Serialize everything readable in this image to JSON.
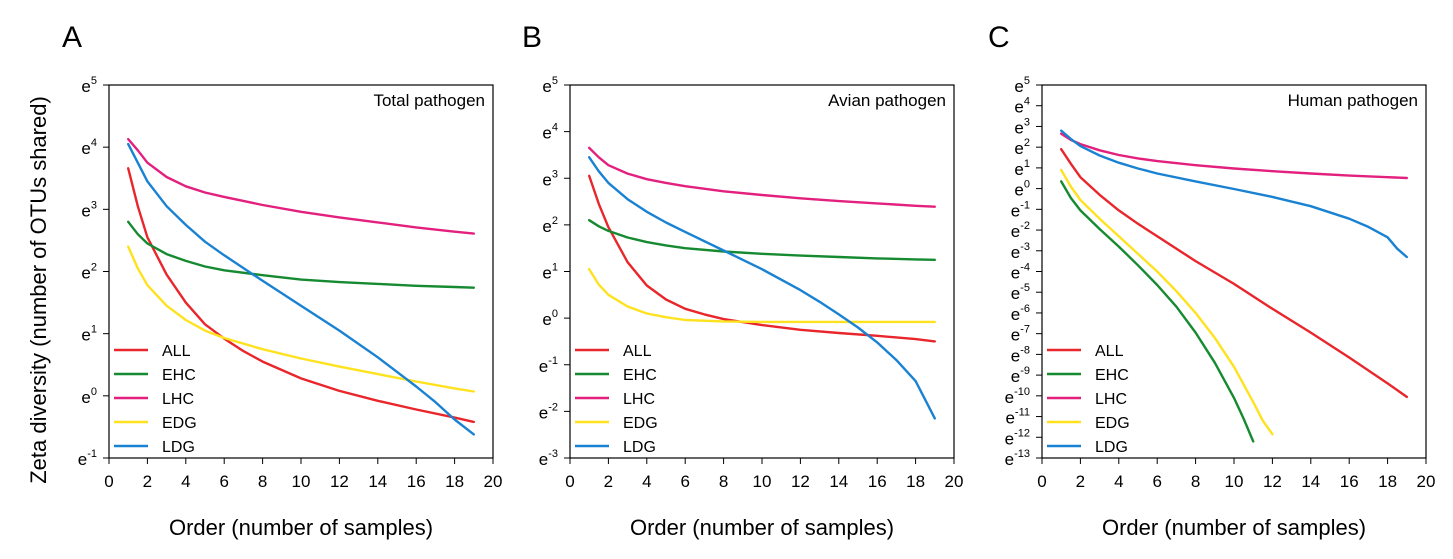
{
  "figure": {
    "ylabel": "Zeta diversity (number of OTUs shared)"
  },
  "chart_data": [
    {
      "type": "line",
      "panel_label": "A",
      "title": "Total pathogen",
      "xlabel": "Order (number of samples)",
      "ylabel": "Zeta diversity (number of OTUs shared)",
      "xlim": [
        0,
        20
      ],
      "ylim": [
        -1,
        5
      ],
      "x_ticks": [
        0,
        2,
        4,
        6,
        8,
        10,
        12,
        14,
        16,
        18,
        20
      ],
      "y_ticks": [
        -1,
        0,
        1,
        2,
        3,
        4,
        5
      ],
      "y_tick_prefix": "e",
      "legend_position": "bottom-left",
      "series": [
        {
          "name": "ALL",
          "color": "#e8262b",
          "points": [
            [
              1,
              3.66
            ],
            [
              1.5,
              3.05
            ],
            [
              2,
              2.55
            ],
            [
              3,
              1.95
            ],
            [
              4,
              1.5
            ],
            [
              5,
              1.15
            ],
            [
              6,
              0.92
            ],
            [
              7,
              0.72
            ],
            [
              8,
              0.55
            ],
            [
              10,
              0.28
            ],
            [
              12,
              0.08
            ],
            [
              14,
              -0.08
            ],
            [
              16,
              -0.22
            ],
            [
              18,
              -0.35
            ],
            [
              19,
              -0.42
            ]
          ]
        },
        {
          "name": "EHC",
          "color": "#168a30",
          "points": [
            [
              1,
              2.8
            ],
            [
              1.5,
              2.6
            ],
            [
              2,
              2.45
            ],
            [
              3,
              2.28
            ],
            [
              4,
              2.17
            ],
            [
              5,
              2.08
            ],
            [
              6,
              2.02
            ],
            [
              8,
              1.94
            ],
            [
              10,
              1.87
            ],
            [
              12,
              1.83
            ],
            [
              14,
              1.8
            ],
            [
              16,
              1.77
            ],
            [
              18,
              1.75
            ],
            [
              19,
              1.74
            ]
          ]
        },
        {
          "name": "LHC",
          "color": "#e3207e",
          "points": [
            [
              1,
              4.13
            ],
            [
              1.5,
              3.95
            ],
            [
              2,
              3.75
            ],
            [
              3,
              3.52
            ],
            [
              4,
              3.37
            ],
            [
              5,
              3.27
            ],
            [
              6,
              3.2
            ],
            [
              8,
              3.07
            ],
            [
              10,
              2.96
            ],
            [
              12,
              2.87
            ],
            [
              14,
              2.79
            ],
            [
              16,
              2.71
            ],
            [
              18,
              2.64
            ],
            [
              19,
              2.61
            ]
          ]
        },
        {
          "name": "EDG",
          "color": "#ffe21f",
          "points": [
            [
              1,
              2.4
            ],
            [
              1.5,
              2.05
            ],
            [
              2,
              1.78
            ],
            [
              3,
              1.45
            ],
            [
              4,
              1.22
            ],
            [
              5,
              1.05
            ],
            [
              6,
              0.93
            ],
            [
              8,
              0.75
            ],
            [
              10,
              0.6
            ],
            [
              12,
              0.47
            ],
            [
              14,
              0.35
            ],
            [
              16,
              0.23
            ],
            [
              18,
              0.12
            ],
            [
              19,
              0.07
            ]
          ]
        },
        {
          "name": "LDG",
          "color": "#1a82d2",
          "points": [
            [
              1,
              4.05
            ],
            [
              1.5,
              3.75
            ],
            [
              2,
              3.45
            ],
            [
              3,
              3.05
            ],
            [
              4,
              2.75
            ],
            [
              5,
              2.48
            ],
            [
              6,
              2.26
            ],
            [
              8,
              1.85
            ],
            [
              10,
              1.45
            ],
            [
              12,
              1.05
            ],
            [
              14,
              0.62
            ],
            [
              16,
              0.15
            ],
            [
              17,
              -0.1
            ],
            [
              18,
              -0.38
            ],
            [
              19,
              -0.62
            ]
          ]
        }
      ]
    },
    {
      "type": "line",
      "panel_label": "B",
      "title": "Avian pathogen",
      "xlabel": "Order (number of samples)",
      "ylabel": "",
      "xlim": [
        0,
        20
      ],
      "ylim": [
        -3,
        5
      ],
      "x_ticks": [
        0,
        2,
        4,
        6,
        8,
        10,
        12,
        14,
        16,
        18,
        20
      ],
      "y_ticks": [
        -3,
        -2,
        -1,
        0,
        1,
        2,
        3,
        4,
        5
      ],
      "y_tick_prefix": "e",
      "legend_position": "bottom-left",
      "series": [
        {
          "name": "ALL",
          "color": "#e8262b",
          "points": [
            [
              1,
              3.05
            ],
            [
              1.5,
              2.45
            ],
            [
              2,
              1.95
            ],
            [
              3,
              1.2
            ],
            [
              4,
              0.7
            ],
            [
              5,
              0.4
            ],
            [
              6,
              0.2
            ],
            [
              7,
              0.08
            ],
            [
              8,
              -0.02
            ],
            [
              10,
              -0.15
            ],
            [
              12,
              -0.25
            ],
            [
              14,
              -0.32
            ],
            [
              16,
              -0.38
            ],
            [
              18,
              -0.45
            ],
            [
              19,
              -0.5
            ]
          ]
        },
        {
          "name": "EHC",
          "color": "#168a30",
          "points": [
            [
              1,
              2.1
            ],
            [
              1.5,
              1.97
            ],
            [
              2,
              1.87
            ],
            [
              3,
              1.73
            ],
            [
              4,
              1.63
            ],
            [
              5,
              1.56
            ],
            [
              6,
              1.5
            ],
            [
              8,
              1.43
            ],
            [
              10,
              1.38
            ],
            [
              12,
              1.34
            ],
            [
              14,
              1.31
            ],
            [
              16,
              1.28
            ],
            [
              18,
              1.26
            ],
            [
              19,
              1.25
            ]
          ]
        },
        {
          "name": "LHC",
          "color": "#e3207e",
          "points": [
            [
              1,
              3.65
            ],
            [
              1.5,
              3.45
            ],
            [
              2,
              3.28
            ],
            [
              3,
              3.1
            ],
            [
              4,
              2.98
            ],
            [
              5,
              2.9
            ],
            [
              6,
              2.83
            ],
            [
              8,
              2.72
            ],
            [
              10,
              2.64
            ],
            [
              12,
              2.57
            ],
            [
              14,
              2.51
            ],
            [
              16,
              2.46
            ],
            [
              18,
              2.41
            ],
            [
              19,
              2.39
            ]
          ]
        },
        {
          "name": "EDG",
          "color": "#ffe21f",
          "points": [
            [
              1,
              1.05
            ],
            [
              1.5,
              0.72
            ],
            [
              2,
              0.5
            ],
            [
              3,
              0.25
            ],
            [
              4,
              0.1
            ],
            [
              5,
              0.02
            ],
            [
              6,
              -0.04
            ],
            [
              8,
              -0.07
            ],
            [
              10,
              -0.08
            ],
            [
              12,
              -0.08
            ],
            [
              14,
              -0.08
            ],
            [
              16,
              -0.08
            ],
            [
              18,
              -0.08
            ],
            [
              19,
              -0.08
            ]
          ]
        },
        {
          "name": "LDG",
          "color": "#1a82d2",
          "points": [
            [
              1,
              3.45
            ],
            [
              1.5,
              3.15
            ],
            [
              2,
              2.9
            ],
            [
              3,
              2.55
            ],
            [
              4,
              2.28
            ],
            [
              5,
              2.05
            ],
            [
              6,
              1.85
            ],
            [
              8,
              1.45
            ],
            [
              10,
              1.05
            ],
            [
              12,
              0.6
            ],
            [
              13,
              0.35
            ],
            [
              14,
              0.08
            ],
            [
              15,
              -0.2
            ],
            [
              16,
              -0.52
            ],
            [
              17,
              -0.9
            ],
            [
              18,
              -1.35
            ],
            [
              18.5,
              -1.75
            ],
            [
              19,
              -2.15
            ]
          ]
        }
      ]
    },
    {
      "type": "line",
      "panel_label": "C",
      "title": "Human pathogen",
      "xlabel": "Order (number of samples)",
      "ylabel": "",
      "xlim": [
        0,
        20
      ],
      "ylim": [
        -13,
        5
      ],
      "x_ticks": [
        0,
        2,
        4,
        6,
        8,
        10,
        12,
        14,
        16,
        18,
        20
      ],
      "y_ticks": [
        -13,
        -12,
        -11,
        -10,
        -9,
        -8,
        -7,
        -6,
        -5,
        -4,
        -3,
        -2,
        -1,
        0,
        1,
        2,
        3,
        4,
        5
      ],
      "y_tick_prefix": "e",
      "legend_position": "bottom-left",
      "series": [
        {
          "name": "ALL",
          "color": "#e8262b",
          "points": [
            [
              1,
              1.9
            ],
            [
              1.5,
              1.2
            ],
            [
              2,
              0.55
            ],
            [
              3,
              -0.3
            ],
            [
              4,
              -1.05
            ],
            [
              5,
              -1.7
            ],
            [
              6,
              -2.3
            ],
            [
              8,
              -3.5
            ],
            [
              10,
              -4.6
            ],
            [
              12,
              -5.8
            ],
            [
              14,
              -6.95
            ],
            [
              16,
              -8.15
            ],
            [
              18,
              -9.4
            ],
            [
              19,
              -10.05
            ]
          ]
        },
        {
          "name": "EHC",
          "color": "#168a30",
          "points": [
            [
              1,
              0.35
            ],
            [
              1.5,
              -0.45
            ],
            [
              2,
              -1.05
            ],
            [
              3,
              -1.95
            ],
            [
              4,
              -2.8
            ],
            [
              5,
              -3.7
            ],
            [
              6,
              -4.65
            ],
            [
              7,
              -5.7
            ],
            [
              8,
              -6.95
            ],
            [
              9,
              -8.4
            ],
            [
              10,
              -10.1
            ],
            [
              10.5,
              -11.1
            ],
            [
              11,
              -12.2
            ]
          ]
        },
        {
          "name": "LHC",
          "color": "#e3207e",
          "points": [
            [
              1,
              2.65
            ],
            [
              1.5,
              2.35
            ],
            [
              2,
              2.15
            ],
            [
              3,
              1.85
            ],
            [
              4,
              1.62
            ],
            [
              5,
              1.46
            ],
            [
              6,
              1.33
            ],
            [
              8,
              1.13
            ],
            [
              10,
              0.97
            ],
            [
              12,
              0.84
            ],
            [
              14,
              0.73
            ],
            [
              16,
              0.63
            ],
            [
              18,
              0.55
            ],
            [
              19,
              0.51
            ]
          ]
        },
        {
          "name": "EDG",
          "color": "#ffe21f",
          "points": [
            [
              1,
              0.9
            ],
            [
              1.5,
              0.1
            ],
            [
              2,
              -0.55
            ],
            [
              3,
              -1.45
            ],
            [
              4,
              -2.3
            ],
            [
              5,
              -3.15
            ],
            [
              6,
              -4.0
            ],
            [
              7,
              -4.95
            ],
            [
              8,
              -6.0
            ],
            [
              9,
              -7.2
            ],
            [
              10,
              -8.6
            ],
            [
              11,
              -10.3
            ],
            [
              11.5,
              -11.2
            ],
            [
              12,
              -11.85
            ]
          ]
        },
        {
          "name": "LDG",
          "color": "#1a82d2",
          "points": [
            [
              1,
              2.8
            ],
            [
              1.5,
              2.4
            ],
            [
              2,
              2.05
            ],
            [
              3,
              1.6
            ],
            [
              4,
              1.25
            ],
            [
              5,
              0.97
            ],
            [
              6,
              0.73
            ],
            [
              8,
              0.35
            ],
            [
              10,
              -0.02
            ],
            [
              12,
              -0.4
            ],
            [
              14,
              -0.85
            ],
            [
              16,
              -1.45
            ],
            [
              17,
              -1.85
            ],
            [
              18,
              -2.35
            ],
            [
              18.5,
              -2.9
            ],
            [
              19,
              -3.3
            ]
          ]
        }
      ]
    }
  ]
}
